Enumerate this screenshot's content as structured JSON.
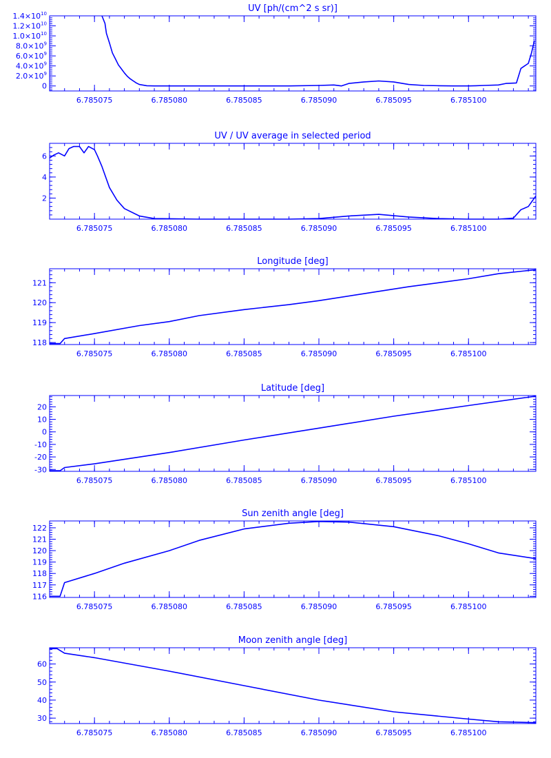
{
  "colors": {
    "line": "#0000ff",
    "axes": "#0000ff",
    "background": "#ffffff"
  },
  "chart_data": [
    {
      "type": "line",
      "title": "UV [ph/(cm^2 s sr)]",
      "xlabel": "",
      "ylabel": "",
      "xlim": [
        6.785072,
        6.7851045
      ],
      "ylim": [
        -1000000000.0,
        14000000000.0
      ],
      "x_ticks": [
        6.785075,
        6.78508,
        6.785085,
        6.78509,
        6.785095,
        6.7851
      ],
      "x_tick_labels": [
        "6.785075",
        "6.785080",
        "6.785085",
        "6.785090",
        "6.785095",
        "6.785100"
      ],
      "y_ticks": [
        0,
        2000000000.0,
        4000000000.0,
        6000000000.0,
        8000000000.0,
        10000000000.0,
        12000000000.0,
        14000000000.0
      ],
      "y_tick_labels": [
        {
          "mant": "0",
          "exp": ""
        },
        {
          "mant": "2.0×10",
          "exp": "9"
        },
        {
          "mant": "4.0×10",
          "exp": "9"
        },
        {
          "mant": "6.0×10",
          "exp": "9"
        },
        {
          "mant": "8.0×10",
          "exp": "9"
        },
        {
          "mant": "1.0×10",
          "exp": "10"
        },
        {
          "mant": "1.2×10",
          "exp": "10"
        },
        {
          "mant": "1.4×10",
          "exp": "10"
        }
      ],
      "x": [
        6.7850755,
        6.7850757,
        6.7850758,
        6.785076,
        6.7850762,
        6.7850764,
        6.7850766,
        6.7850768,
        6.785077,
        6.7850772,
        6.7850774,
        6.7850776,
        6.7850778,
        6.785078,
        6.7850785,
        6.785079,
        6.78508,
        6.785082,
        6.785085,
        6.785088,
        6.78509,
        6.785091,
        6.7850915,
        6.785092,
        6.785093,
        6.785094,
        6.785095,
        6.785096,
        6.785097,
        6.785098,
        6.785099,
        6.7851,
        6.7851005,
        6.785101,
        6.785102,
        6.7851025,
        6.7851032,
        6.7851035,
        6.785104,
        6.7851042,
        6.7851044
      ],
      "y": [
        14500000000.0,
        12500000000.0,
        10500000000.0,
        8600000000.0,
        6600000000.0,
        5400000000.0,
        4200000000.0,
        3400000000.0,
        2600000000.0,
        1900000000.0,
        1400000000.0,
        1000000000.0,
        600000000.0,
        300000000.0,
        50000000.0,
        0,
        0,
        0,
        0,
        0,
        100000000.0,
        200000000.0,
        0,
        500000000.0,
        800000000.0,
        1000000000.0,
        800000000.0,
        300000000.0,
        100000000.0,
        50000000.0,
        0,
        0,
        50000000.0,
        100000000.0,
        200000000.0,
        500000000.0,
        600000000.0,
        3500000000.0,
        4500000000.0,
        6500000000.0,
        9000000000.0
      ]
    },
    {
      "type": "line",
      "title": "UV / UV average in selected period",
      "xlabel": "",
      "ylabel": "",
      "xlim": [
        6.785072,
        6.7851045
      ],
      "ylim": [
        0,
        7.2
      ],
      "x_ticks": [
        6.785075,
        6.78508,
        6.785085,
        6.78509,
        6.785095,
        6.7851
      ],
      "x_tick_labels": [
        "6.785075",
        "6.785080",
        "6.785085",
        "6.785090",
        "6.785095",
        "6.785100"
      ],
      "y_ticks": [
        2,
        4,
        6
      ],
      "y_tick_labels": [
        {
          "mant": "2",
          "exp": ""
        },
        {
          "mant": "4",
          "exp": ""
        },
        {
          "mant": "6",
          "exp": ""
        }
      ],
      "x": [
        6.785072,
        6.7850723,
        6.7850726,
        6.785073,
        6.7850733,
        6.7850736,
        6.785074,
        6.7850743,
        6.7850746,
        6.785075,
        6.7850752,
        6.7850755,
        6.7850758,
        6.785076,
        6.7850765,
        6.785077,
        6.785078,
        6.785079,
        6.785082,
        6.785085,
        6.785088,
        6.78509,
        6.785092,
        6.785094,
        6.785096,
        6.785098,
        6.7851,
        6.785102,
        6.785103,
        6.7851035,
        6.785104,
        6.7851045
      ],
      "y": [
        5.8,
        6.1,
        6.3,
        6.0,
        6.7,
        6.9,
        6.9,
        6.3,
        6.9,
        6.6,
        6.0,
        5.0,
        3.8,
        3.0,
        1.8,
        1.0,
        0.3,
        0.05,
        0,
        0,
        0,
        0.05,
        0.3,
        0.45,
        0.2,
        0.05,
        0,
        0,
        0.1,
        0.9,
        1.2,
        2.2
      ]
    },
    {
      "type": "line",
      "title": "Longitude [deg]",
      "xlabel": "",
      "ylabel": "",
      "xlim": [
        6.785072,
        6.7851045
      ],
      "ylim": [
        117.9,
        121.7
      ],
      "x_ticks": [
        6.785075,
        6.78508,
        6.785085,
        6.78509,
        6.785095,
        6.7851
      ],
      "x_tick_labels": [
        "6.785075",
        "6.785080",
        "6.785085",
        "6.785090",
        "6.785095",
        "6.785100"
      ],
      "y_ticks": [
        118,
        119,
        120,
        121
      ],
      "y_tick_labels": [
        {
          "mant": "118",
          "exp": ""
        },
        {
          "mant": "119",
          "exp": ""
        },
        {
          "mant": "120",
          "exp": ""
        },
        {
          "mant": "121",
          "exp": ""
        }
      ],
      "x": [
        6.785072,
        6.7850727,
        6.785073,
        6.785075,
        6.785078,
        6.78508,
        6.785082,
        6.785085,
        6.785088,
        6.78509,
        6.785093,
        6.785096,
        6.785098,
        6.7851,
        6.785102,
        6.7851045
      ],
      "y": [
        117.95,
        117.95,
        118.2,
        118.45,
        118.85,
        119.05,
        119.35,
        119.65,
        119.9,
        120.1,
        120.45,
        120.8,
        121.0,
        121.2,
        121.45,
        121.65
      ]
    },
    {
      "type": "line",
      "title": "Latitude [deg]",
      "xlabel": "",
      "ylabel": "",
      "xlim": [
        6.785072,
        6.7851045
      ],
      "ylim": [
        -31.5,
        29
      ],
      "x_ticks": [
        6.785075,
        6.78508,
        6.785085,
        6.78509,
        6.785095,
        6.7851
      ],
      "x_tick_labels": [
        "6.785075",
        "6.785080",
        "6.785085",
        "6.785090",
        "6.785095",
        "6.785100"
      ],
      "y_ticks": [
        -30,
        -20,
        -10,
        0,
        10,
        20
      ],
      "y_tick_labels": [
        {
          "mant": "-30",
          "exp": ""
        },
        {
          "mant": "-20",
          "exp": ""
        },
        {
          "mant": "-10",
          "exp": ""
        },
        {
          "mant": "0",
          "exp": ""
        },
        {
          "mant": "10",
          "exp": ""
        },
        {
          "mant": "20",
          "exp": ""
        }
      ],
      "x": [
        6.785072,
        6.7850727,
        6.785073,
        6.785075,
        6.78508,
        6.785085,
        6.78509,
        6.785095,
        6.7851,
        6.7851045
      ],
      "y": [
        -31,
        -31,
        -28.5,
        -25.5,
        -16.5,
        -6.5,
        3,
        12.5,
        21,
        28.5
      ]
    },
    {
      "type": "line",
      "title": "Sun zenith angle [deg]",
      "xlabel": "",
      "ylabel": "",
      "xlim": [
        6.785072,
        6.7851045
      ],
      "ylim": [
        115.9,
        122.6
      ],
      "x_ticks": [
        6.785075,
        6.78508,
        6.785085,
        6.78509,
        6.785095,
        6.7851
      ],
      "x_tick_labels": [
        "6.785075",
        "6.785080",
        "6.785085",
        "6.785090",
        "6.785095",
        "6.785100"
      ],
      "y_ticks": [
        116,
        117,
        118,
        119,
        120,
        121,
        122
      ],
      "y_tick_labels": [
        {
          "mant": "116",
          "exp": ""
        },
        {
          "mant": "117",
          "exp": ""
        },
        {
          "mant": "118",
          "exp": ""
        },
        {
          "mant": "119",
          "exp": ""
        },
        {
          "mant": "120",
          "exp": ""
        },
        {
          "mant": "121",
          "exp": ""
        },
        {
          "mant": "122",
          "exp": ""
        }
      ],
      "x": [
        6.785072,
        6.7850727,
        6.785073,
        6.785075,
        6.785077,
        6.78508,
        6.785082,
        6.785085,
        6.785088,
        6.78509,
        6.785092,
        6.785095,
        6.785098,
        6.7851,
        6.785102,
        6.7851045
      ],
      "y": [
        116.0,
        116.0,
        117.2,
        118.0,
        118.9,
        120.0,
        120.9,
        121.9,
        122.4,
        122.55,
        122.5,
        122.1,
        121.3,
        120.6,
        119.8,
        119.3
      ]
    },
    {
      "type": "line",
      "title": "Moon zenith angle [deg]",
      "xlabel": "",
      "ylabel": "",
      "xlim": [
        6.785072,
        6.7851045
      ],
      "ylim": [
        27,
        69
      ],
      "x_ticks": [
        6.785075,
        6.78508,
        6.785085,
        6.78509,
        6.785095,
        6.7851
      ],
      "x_tick_labels": [
        "6.785075",
        "6.785080",
        "6.785085",
        "6.785090",
        "6.785095",
        "6.785100"
      ],
      "y_ticks": [
        30,
        40,
        50,
        60
      ],
      "y_tick_labels": [
        {
          "mant": "30",
          "exp": ""
        },
        {
          "mant": "40",
          "exp": ""
        },
        {
          "mant": "50",
          "exp": ""
        },
        {
          "mant": "60",
          "exp": ""
        }
      ],
      "x": [
        6.785072,
        6.7850725,
        6.785073,
        6.785075,
        6.78508,
        6.785085,
        6.78509,
        6.785095,
        6.7851,
        6.785102,
        6.7851045
      ],
      "y": [
        68.5,
        68.5,
        66,
        63.5,
        56,
        48,
        40,
        33.5,
        29.5,
        28,
        27.5
      ]
    }
  ]
}
